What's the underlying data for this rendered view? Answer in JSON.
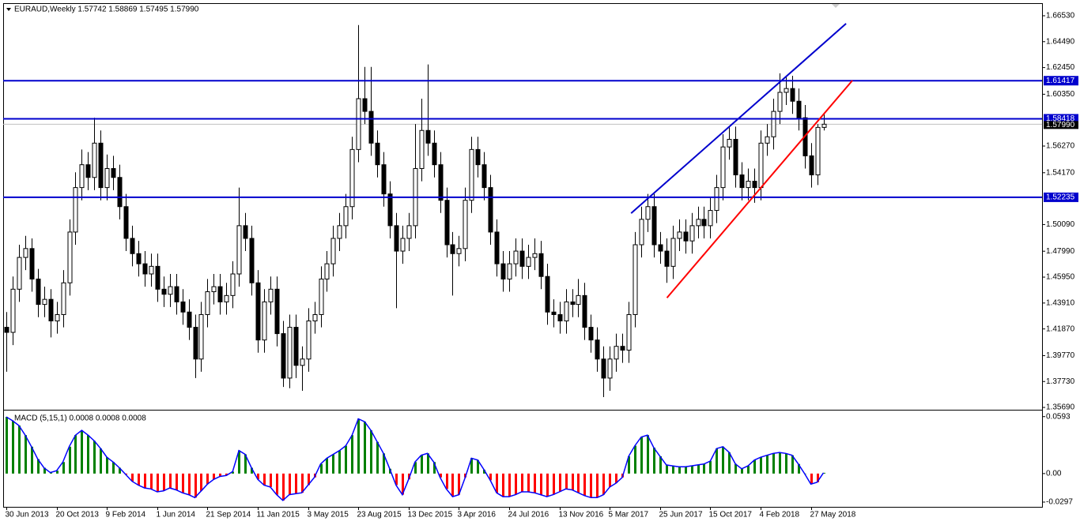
{
  "chart_data": [
    {
      "type": "candlestick",
      "header": "EURAUD,Weekly  1.57742 1.58869 1.57495 1.57990",
      "categories": [
        "30 Jun 2013",
        null,
        null,
        null,
        null,
        null,
        null,
        null,
        "20 Oct 2013",
        null,
        null,
        null,
        null,
        null,
        null,
        null,
        "9 Feb 2014",
        null,
        null,
        null,
        null,
        null,
        null,
        null,
        "1 Jun 2014",
        null,
        null,
        null,
        null,
        null,
        null,
        null,
        "21 Sep 2014",
        null,
        null,
        null,
        null,
        null,
        null,
        null,
        "11 Jan 2015",
        null,
        null,
        null,
        null,
        null,
        null,
        null,
        "3 May 2015",
        null,
        null,
        null,
        null,
        null,
        null,
        null,
        "23 Aug 2015",
        null,
        null,
        null,
        null,
        null,
        null,
        null,
        "13 Dec 2015",
        null,
        null,
        null,
        null,
        null,
        null,
        null,
        "3 Apr 2016",
        null,
        null,
        null,
        null,
        null,
        null,
        null,
        "24 Jul 2016",
        null,
        null,
        null,
        null,
        null,
        null,
        null,
        "13 Nov 2016",
        null,
        null,
        null,
        null,
        null,
        null,
        null,
        "5 Mar 2017",
        null,
        null,
        null,
        null,
        null,
        null,
        null,
        "25 Jun 2017",
        null,
        null,
        null,
        null,
        null,
        null,
        null,
        "15 Oct 2017",
        null,
        null,
        null,
        null,
        null,
        null,
        null,
        "4 Feb 2018",
        null,
        null,
        null,
        null,
        null,
        null,
        null,
        "27 May 2018",
        null,
        null
      ],
      "ohlc": [
        [
          1.42,
          1.432,
          1.385,
          1.416
        ],
        [
          1.416,
          1.46,
          1.406,
          1.45
        ],
        [
          1.45,
          1.485,
          1.44,
          1.475
        ],
        [
          1.475,
          1.492,
          1.465,
          1.482
        ],
        [
          1.482,
          1.49,
          1.448,
          1.458
        ],
        [
          1.458,
          1.466,
          1.428,
          1.438
        ],
        [
          1.438,
          1.452,
          1.428,
          1.442
        ],
        [
          1.442,
          1.45,
          1.412,
          1.425
        ],
        [
          1.425,
          1.44,
          1.415,
          1.43
        ],
        [
          1.43,
          1.465,
          1.42,
          1.455
        ],
        [
          1.455,
          1.505,
          1.445,
          1.495
        ],
        [
          1.495,
          1.542,
          1.485,
          1.53
        ],
        [
          1.53,
          1.56,
          1.52,
          1.548
        ],
        [
          1.548,
          1.558,
          1.528,
          1.538
        ],
        [
          1.538,
          1.585,
          1.528,
          1.565
        ],
        [
          1.565,
          1.575,
          1.52,
          1.53
        ],
        [
          1.53,
          1.556,
          1.52,
          1.545
        ],
        [
          1.545,
          1.555,
          1.528,
          1.538
        ],
        [
          1.538,
          1.548,
          1.505,
          1.515
        ],
        [
          1.515,
          1.525,
          1.48,
          1.49
        ],
        [
          1.49,
          1.5,
          1.468,
          1.478
        ],
        [
          1.478,
          1.488,
          1.46,
          1.47
        ],
        [
          1.47,
          1.48,
          1.452,
          1.462
        ],
        [
          1.462,
          1.478,
          1.452,
          1.468
        ],
        [
          1.468,
          1.478,
          1.44,
          1.45
        ],
        [
          1.45,
          1.46,
          1.436,
          1.446
        ],
        [
          1.446,
          1.462,
          1.436,
          1.452
        ],
        [
          1.452,
          1.462,
          1.43,
          1.44
        ],
        [
          1.44,
          1.45,
          1.422,
          1.432
        ],
        [
          1.432,
          1.442,
          1.41,
          1.42
        ],
        [
          1.42,
          1.43,
          1.38,
          1.395
        ],
        [
          1.395,
          1.44,
          1.385,
          1.43
        ],
        [
          1.43,
          1.458,
          1.42,
          1.448
        ],
        [
          1.448,
          1.462,
          1.438,
          1.452
        ],
        [
          1.452,
          1.462,
          1.43,
          1.44
        ],
        [
          1.44,
          1.455,
          1.43,
          1.445
        ],
        [
          1.445,
          1.472,
          1.435,
          1.462
        ],
        [
          1.462,
          1.53,
          1.452,
          1.5
        ],
        [
          1.5,
          1.51,
          1.48,
          1.49
        ],
        [
          1.49,
          1.5,
          1.445,
          1.455
        ],
        [
          1.455,
          1.465,
          1.4,
          1.41
        ],
        [
          1.41,
          1.45,
          1.4,
          1.44
        ],
        [
          1.44,
          1.46,
          1.43,
          1.45
        ],
        [
          1.45,
          1.46,
          1.405,
          1.415
        ],
        [
          1.415,
          1.425,
          1.373,
          1.38
        ],
        [
          1.38,
          1.43,
          1.372,
          1.42
        ],
        [
          1.42,
          1.43,
          1.38,
          1.39
        ],
        [
          1.39,
          1.405,
          1.37,
          1.395
        ],
        [
          1.395,
          1.435,
          1.385,
          1.425
        ],
        [
          1.425,
          1.44,
          1.415,
          1.43
        ],
        [
          1.43,
          1.468,
          1.42,
          1.458
        ],
        [
          1.458,
          1.48,
          1.448,
          1.47
        ],
        [
          1.47,
          1.5,
          1.46,
          1.49
        ],
        [
          1.49,
          1.51,
          1.48,
          1.5
        ],
        [
          1.5,
          1.525,
          1.49,
          1.515
        ],
        [
          1.515,
          1.57,
          1.505,
          1.56
        ],
        [
          1.56,
          1.658,
          1.55,
          1.6
        ],
        [
          1.6,
          1.625,
          1.58,
          1.59
        ],
        [
          1.59,
          1.625,
          1.555,
          1.565
        ],
        [
          1.565,
          1.575,
          1.538,
          1.548
        ],
        [
          1.548,
          1.558,
          1.515,
          1.525
        ],
        [
          1.525,
          1.535,
          1.49,
          1.5
        ],
        [
          1.5,
          1.51,
          1.435,
          1.48
        ],
        [
          1.48,
          1.5,
          1.47,
          1.49
        ],
        [
          1.49,
          1.51,
          1.48,
          1.5
        ],
        [
          1.5,
          1.58,
          1.49,
          1.545
        ],
        [
          1.545,
          1.6,
          1.535,
          1.575
        ],
        [
          1.575,
          1.627,
          1.555,
          1.565
        ],
        [
          1.565,
          1.575,
          1.538,
          1.548
        ],
        [
          1.548,
          1.558,
          1.51,
          1.52
        ],
        [
          1.52,
          1.53,
          1.475,
          1.485
        ],
        [
          1.485,
          1.495,
          1.445,
          1.478
        ],
        [
          1.478,
          1.492,
          1.468,
          1.482
        ],
        [
          1.482,
          1.53,
          1.472,
          1.52
        ],
        [
          1.52,
          1.57,
          1.51,
          1.56
        ],
        [
          1.56,
          1.57,
          1.538,
          1.548
        ],
        [
          1.548,
          1.558,
          1.52,
          1.53
        ],
        [
          1.53,
          1.54,
          1.485,
          1.495
        ],
        [
          1.495,
          1.505,
          1.46,
          1.47
        ],
        [
          1.47,
          1.48,
          1.448,
          1.458
        ],
        [
          1.458,
          1.48,
          1.448,
          1.47
        ],
        [
          1.47,
          1.49,
          1.46,
          1.48
        ],
        [
          1.48,
          1.49,
          1.458,
          1.468
        ],
        [
          1.468,
          1.485,
          1.458,
          1.475
        ],
        [
          1.475,
          1.49,
          1.465,
          1.478
        ],
        [
          1.478,
          1.488,
          1.45,
          1.46
        ],
        [
          1.46,
          1.47,
          1.422,
          1.432
        ],
        [
          1.432,
          1.442,
          1.42,
          1.43
        ],
        [
          1.43,
          1.44,
          1.415,
          1.425
        ],
        [
          1.425,
          1.45,
          1.415,
          1.44
        ],
        [
          1.44,
          1.45,
          1.428,
          1.438
        ],
        [
          1.438,
          1.458,
          1.428,
          1.445
        ],
        [
          1.445,
          1.455,
          1.41,
          1.42
        ],
        [
          1.42,
          1.43,
          1.4,
          1.41
        ],
        [
          1.41,
          1.42,
          1.385,
          1.395
        ],
        [
          1.395,
          1.405,
          1.365,
          1.38
        ],
        [
          1.38,
          1.405,
          1.37,
          1.395
        ],
        [
          1.395,
          1.415,
          1.385,
          1.405
        ],
        [
          1.405,
          1.415,
          1.392,
          1.402
        ],
        [
          1.402,
          1.44,
          1.392,
          1.43
        ],
        [
          1.43,
          1.495,
          1.42,
          1.485
        ],
        [
          1.485,
          1.515,
          1.475,
          1.505
        ],
        [
          1.505,
          1.525,
          1.495,
          1.515
        ],
        [
          1.515,
          1.525,
          1.475,
          1.485
        ],
        [
          1.485,
          1.495,
          1.47,
          1.48
        ],
        [
          1.48,
          1.49,
          1.455,
          1.468
        ],
        [
          1.468,
          1.5,
          1.458,
          1.49
        ],
        [
          1.49,
          1.505,
          1.48,
          1.495
        ],
        [
          1.495,
          1.505,
          1.478,
          1.488
        ],
        [
          1.488,
          1.51,
          1.478,
          1.5
        ],
        [
          1.5,
          1.515,
          1.49,
          1.505
        ],
        [
          1.505,
          1.515,
          1.49,
          1.5
        ],
        [
          1.5,
          1.522,
          1.49,
          1.512
        ],
        [
          1.512,
          1.54,
          1.502,
          1.53
        ],
        [
          1.53,
          1.572,
          1.52,
          1.562
        ],
        [
          1.562,
          1.578,
          1.552,
          1.568
        ],
        [
          1.568,
          1.578,
          1.53,
          1.54
        ],
        [
          1.54,
          1.55,
          1.52,
          1.53
        ],
        [
          1.53,
          1.545,
          1.52,
          1.535
        ],
        [
          1.535,
          1.545,
          1.518,
          1.53
        ],
        [
          1.53,
          1.575,
          1.52,
          1.565
        ],
        [
          1.565,
          1.58,
          1.555,
          1.57
        ],
        [
          1.57,
          1.6,
          1.56,
          1.59
        ],
        [
          1.59,
          1.62,
          1.58,
          1.605
        ],
        [
          1.605,
          1.618,
          1.595,
          1.608
        ],
        [
          1.608,
          1.618,
          1.588,
          1.598
        ],
        [
          1.598,
          1.608,
          1.575,
          1.585
        ],
        [
          1.585,
          1.595,
          1.545,
          1.555
        ],
        [
          1.555,
          1.565,
          1.53,
          1.54
        ],
        [
          1.54,
          1.58,
          1.532,
          1.5774
        ],
        [
          1.5774,
          1.5887,
          1.575,
          1.5799
        ]
      ],
      "ylim": [
        1.3557,
        1.6746
      ],
      "yticks": [
        {
          "value": 1.6653,
          "label": "1.66530"
        },
        {
          "value": 1.6449,
          "label": "1.64490"
        },
        {
          "value": 1.6245,
          "label": "1.62450"
        },
        {
          "value": 1.6035,
          "label": "1.60350"
        },
        {
          "value": 1.5627,
          "label": "1.56270"
        },
        {
          "value": 1.5417,
          "label": "1.54170"
        },
        {
          "value": 1.5009,
          "label": "1.50090"
        },
        {
          "value": 1.4799,
          "label": "1.47990"
        },
        {
          "value": 1.4595,
          "label": "1.45950"
        },
        {
          "value": 1.4391,
          "label": "1.43910"
        },
        {
          "value": 1.4187,
          "label": "1.41870"
        },
        {
          "value": 1.3977,
          "label": "1.39770"
        },
        {
          "value": 1.3773,
          "label": "1.37730"
        },
        {
          "value": 1.3569,
          "label": "1.35690"
        }
      ],
      "levels": [
        {
          "value": 1.61417,
          "label": "1.61417"
        },
        {
          "value": 1.58418,
          "label": "1.58418"
        },
        {
          "value": 1.52235,
          "label": "1.52235"
        }
      ],
      "level_color": "#0000cd",
      "current_price": {
        "value": 1.5799,
        "label": "1.57990"
      },
      "trendlines": [
        {
          "color": "#0000cd",
          "x": [
            99.4,
            133.6
          ],
          "y": [
            1.5098,
            1.6591
          ]
        },
        {
          "color": "#ff0000",
          "x": [
            105.1,
            134.6
          ],
          "y": [
            1.4432,
            1.6143
          ]
        }
      ],
      "up_color": "#ffffff",
      "down_color": "#000000"
    },
    {
      "type": "macd",
      "label": "MACD (5,15,1) 0.0008 0.0008 0.0008",
      "values": [
        0.059,
        0.055,
        0.05,
        0.04,
        0.028,
        0.015,
        0.006,
        0.001,
        0.003,
        0.012,
        0.028,
        0.04,
        0.045,
        0.04,
        0.034,
        0.026,
        0.017,
        0.012,
        0.006,
        -0.001,
        -0.008,
        -0.012,
        -0.015,
        -0.016,
        -0.019,
        -0.018,
        -0.015,
        -0.017,
        -0.02,
        -0.022,
        -0.025,
        -0.018,
        -0.011,
        -0.006,
        -0.003,
        -0.002,
        0.002,
        0.024,
        0.02,
        0.006,
        -0.006,
        -0.012,
        -0.014,
        -0.022,
        -0.028,
        -0.022,
        -0.021,
        -0.02,
        -0.012,
        -0.004,
        0.01,
        0.016,
        0.02,
        0.024,
        0.029,
        0.04,
        0.057,
        0.054,
        0.045,
        0.033,
        0.021,
        0.005,
        -0.012,
        -0.022,
        -0.006,
        0.012,
        0.019,
        0.021,
        0.012,
        -0.004,
        -0.016,
        -0.024,
        -0.022,
        -0.004,
        0.016,
        0.014,
        0.004,
        -0.007,
        -0.02,
        -0.024,
        -0.024,
        -0.022,
        -0.019,
        -0.019,
        -0.02,
        -0.022,
        -0.024,
        -0.022,
        -0.019,
        -0.016,
        -0.017,
        -0.02,
        -0.023,
        -0.025,
        -0.025,
        -0.022,
        -0.014,
        -0.01,
        -0.004,
        0.018,
        0.029,
        0.038,
        0.04,
        0.027,
        0.018,
        0.009,
        0.008,
        0.007,
        0.007,
        0.008,
        0.009,
        0.01,
        0.013,
        0.026,
        0.028,
        0.022,
        0.01,
        0.005,
        0.008,
        0.014,
        0.017,
        0.019,
        0.021,
        0.022,
        0.021,
        0.019,
        0.01,
        0.0,
        -0.011,
        -0.009,
        0.0008
      ],
      "ylim": [
        -0.033,
        0.064
      ],
      "yticks": [
        0.0593,
        {
          "value": 0,
          "label": "0.00"
        },
        -0.0297
      ],
      "pos_color": "#008000",
      "neg_color": "#ff0000",
      "line_color": "#0000ff"
    }
  ]
}
